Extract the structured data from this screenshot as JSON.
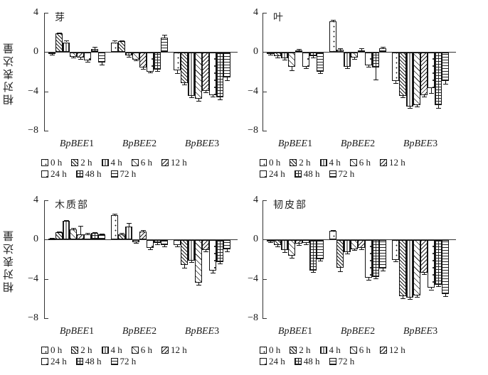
{
  "figure": {
    "description_text": "",
    "ink_color": "#1a1a1a",
    "background_color": "#ffffff"
  },
  "legend": {
    "rows": [
      5,
      3
    ],
    "items": [
      {
        "label": "0 h",
        "pattern": "sparse-dots"
      },
      {
        "label": "2 h",
        "pattern": "diagonal-hatch"
      },
      {
        "label": "4 h",
        "pattern": "vertical-lines"
      },
      {
        "label": "6 h",
        "pattern": "light-diagonal-hatch"
      },
      {
        "label": "12 h",
        "pattern": "chevron"
      },
      {
        "label": "24 h",
        "pattern": "sparse-marks"
      },
      {
        "label": "48 h",
        "pattern": "cross-grid"
      },
      {
        "label": "72 h",
        "pattern": "horizontal-lines"
      }
    ]
  },
  "chart_data": [
    {
      "type": "bar",
      "title": "芽",
      "ylabel": "相对表达量",
      "ylim": [
        -8,
        4
      ],
      "yticks": [
        4,
        0,
        -4,
        -8
      ],
      "ytick_labels": [
        "4",
        "0",
        "−4",
        "−8"
      ],
      "grid": false,
      "legend_position": "bottom",
      "categories": [
        "BpBEE1",
        "BpBEE2",
        "BpBEE3"
      ],
      "series": [
        {
          "name": "0 h",
          "values": [
            -0.1,
            1.0,
            -1.8
          ],
          "errors": [
            0.05,
            0.2,
            0.3
          ]
        },
        {
          "name": "2 h",
          "values": [
            1.9,
            1.1,
            -3.1
          ],
          "errors": [
            0.1,
            0.1,
            0.15
          ]
        },
        {
          "name": "4 h",
          "values": [
            1.0,
            -0.3,
            -4.4
          ],
          "errors": [
            0.15,
            0.1,
            0.15
          ]
        },
        {
          "name": "6 h",
          "values": [
            -0.4,
            -0.7,
            -4.7
          ],
          "errors": [
            0.1,
            0.1,
            0.2
          ]
        },
        {
          "name": "12 h",
          "values": [
            -0.5,
            -1.5,
            -3.9
          ],
          "errors": [
            0.1,
            0.15,
            0.15
          ]
        },
        {
          "name": "24 h",
          "values": [
            -0.8,
            -1.9,
            -4.3
          ],
          "errors": [
            0.1,
            0.1,
            0.15
          ]
        },
        {
          "name": "48 h",
          "values": [
            0.3,
            -1.7,
            -4.5
          ],
          "errors": [
            0.2,
            0.15,
            0.25
          ]
        },
        {
          "name": "72 h",
          "values": [
            -1.0,
            1.5,
            -2.5
          ],
          "errors": [
            0.2,
            0.25,
            0.3
          ]
        }
      ]
    },
    {
      "type": "bar",
      "title": "叶",
      "ylabel": "相对表达量",
      "ylim": [
        -8,
        4
      ],
      "yticks": [
        4,
        0,
        -4,
        -8
      ],
      "ytick_labels": [
        "4",
        "0",
        "−4",
        "−8"
      ],
      "grid": false,
      "legend_position": "bottom",
      "categories": [
        "BpBEE1",
        "BpBEE2",
        "BpBEE3"
      ],
      "series": [
        {
          "name": "0 h",
          "values": [
            -0.15,
            3.1,
            -2.9
          ],
          "errors": [
            0.05,
            0.2,
            0.15
          ]
        },
        {
          "name": "2 h",
          "values": [
            -0.35,
            0.25,
            -4.4
          ],
          "errors": [
            0.1,
            0.1,
            0.15
          ]
        },
        {
          "name": "4 h",
          "values": [
            -0.55,
            -1.4,
            -5.5
          ],
          "errors": [
            0.15,
            0.2,
            0.15
          ]
        },
        {
          "name": "6 h",
          "values": [
            -1.45,
            -0.5,
            -5.3
          ],
          "errors": [
            0.3,
            0.1,
            0.15
          ]
        },
        {
          "name": "12 h",
          "values": [
            0.2,
            0.2,
            -4.3
          ],
          "errors": [
            0.1,
            0.15,
            0.15
          ]
        },
        {
          "name": "24 h",
          "values": [
            -1.4,
            -1.25,
            -3.6
          ],
          "errors": [
            0.15,
            0.15,
            0.5
          ]
        },
        {
          "name": "48 h",
          "values": [
            -0.35,
            -1.5,
            -5.3
          ],
          "errors": [
            0.1,
            1.2,
            0.3
          ]
        },
        {
          "name": "72 h",
          "values": [
            -1.9,
            0.4,
            -2.9
          ],
          "errors": [
            0.15,
            0.1,
            0.25
          ]
        }
      ]
    },
    {
      "type": "bar",
      "title": "木质部",
      "ylabel": "相对表达量",
      "ylim": [
        -8,
        4
      ],
      "yticks": [
        4,
        0,
        -4,
        -8
      ],
      "ytick_labels": [
        "4",
        "0",
        "−4",
        "−8"
      ],
      "grid": false,
      "legend_position": "bottom",
      "categories": [
        "BpBEE1",
        "BpBEE2",
        "BpBEE3"
      ],
      "series": [
        {
          "name": "0 h",
          "values": [
            0.1,
            2.5,
            -0.5
          ],
          "errors": [
            0.05,
            0.15,
            0.1
          ]
        },
        {
          "name": "2 h",
          "values": [
            0.75,
            0.55,
            -2.5
          ],
          "errors": [
            0.1,
            0.1,
            0.3
          ]
        },
        {
          "name": "4 h",
          "values": [
            1.9,
            1.35,
            -2.1
          ],
          "errors": [
            0.1,
            0.35,
            0.15
          ]
        },
        {
          "name": "6 h",
          "values": [
            1.05,
            -0.2,
            -4.3
          ],
          "errors": [
            0.1,
            0.1,
            0.25
          ]
        },
        {
          "name": "12 h",
          "values": [
            0.55,
            0.85,
            -1.0
          ],
          "errors": [
            0.85,
            0.1,
            0.15
          ]
        },
        {
          "name": "24 h",
          "values": [
            0.55,
            -0.8,
            -3.1
          ],
          "errors": [
            0.1,
            0.1,
            0.2
          ]
        },
        {
          "name": "48 h",
          "values": [
            0.65,
            -0.3,
            -2.2
          ],
          "errors": [
            0.1,
            0.1,
            0.15
          ]
        },
        {
          "name": "72 h",
          "values": [
            0.5,
            -0.45,
            -0.9
          ],
          "errors": [
            0.1,
            0.15,
            0.2
          ]
        }
      ]
    },
    {
      "type": "bar",
      "title": "韧皮部",
      "ylabel": "相对表达量",
      "ylim": [
        -8,
        4
      ],
      "yticks": [
        4,
        0,
        -4,
        -8
      ],
      "ytick_labels": [
        "4",
        "0",
        "−4",
        "−8"
      ],
      "grid": false,
      "legend_position": "bottom",
      "categories": [
        "BpBEE1",
        "BpBEE2",
        "BpBEE3"
      ],
      "series": [
        {
          "name": "0 h",
          "values": [
            -0.1,
            0.9,
            -2.0
          ],
          "errors": [
            0.05,
            0.1,
            0.15
          ]
        },
        {
          "name": "2 h",
          "values": [
            -0.5,
            -2.8,
            -5.7
          ],
          "errors": [
            0.1,
            0.35,
            0.2
          ]
        },
        {
          "name": "4 h",
          "values": [
            -1.0,
            -1.2,
            -5.8
          ],
          "errors": [
            0.2,
            0.15,
            0.2
          ]
        },
        {
          "name": "6 h",
          "values": [
            -1.6,
            -0.9,
            -5.6
          ],
          "errors": [
            0.15,
            0.1,
            0.15
          ]
        },
        {
          "name": "12 h",
          "values": [
            -0.35,
            -0.8,
            -3.3
          ],
          "errors": [
            0.1,
            0.1,
            0.15
          ]
        },
        {
          "name": "24 h",
          "values": [
            -0.3,
            -3.8,
            -4.8
          ],
          "errors": [
            0.1,
            0.2,
            0.2
          ]
        },
        {
          "name": "48 h",
          "values": [
            -3.05,
            -3.7,
            -4.5
          ],
          "errors": [
            0.15,
            0.15,
            0.15
          ]
        },
        {
          "name": "72 h",
          "values": [
            -1.9,
            -2.9,
            -5.5
          ],
          "errors": [
            0.15,
            0.15,
            0.2
          ]
        }
      ]
    }
  ]
}
